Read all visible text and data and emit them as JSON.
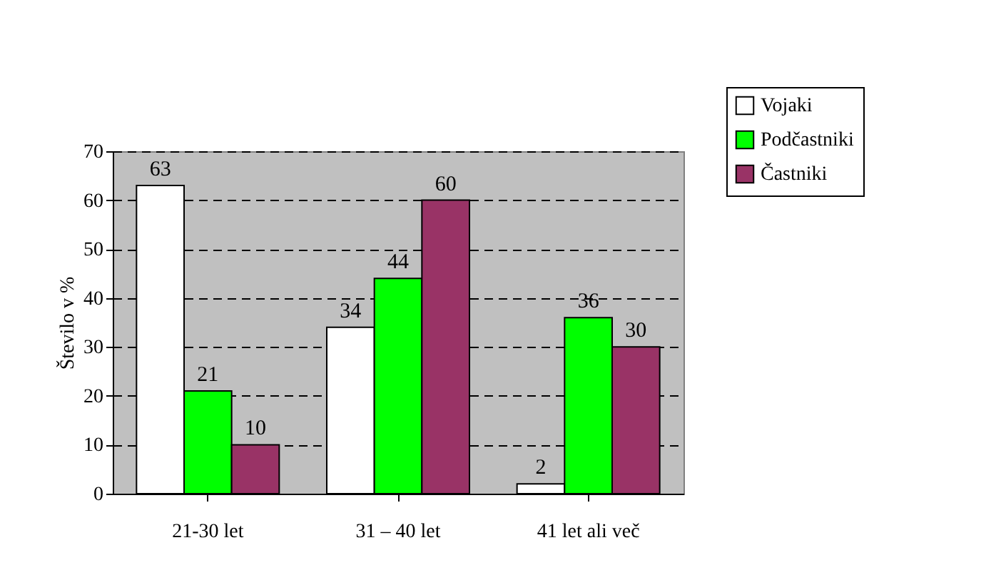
{
  "chart_data": {
    "type": "bar",
    "ylabel": "Število v %",
    "categories": [
      "21-30 let",
      "31 – 40 let",
      "41 let ali več"
    ],
    "series": [
      {
        "name": "Vojaki",
        "color": "#ffffff",
        "values": [
          63,
          34,
          2
        ]
      },
      {
        "name": "Podčastniki",
        "color": "#00ff00",
        "values": [
          21,
          44,
          36
        ]
      },
      {
        "name": "Častniki",
        "color": "#993366",
        "values": [
          10,
          60,
          30
        ]
      }
    ],
    "ylim": [
      0,
      70
    ],
    "yticks": [
      0,
      10,
      20,
      30,
      40,
      50,
      60,
      70
    ],
    "grid": "y",
    "legend": "top right",
    "data_labels": true
  }
}
